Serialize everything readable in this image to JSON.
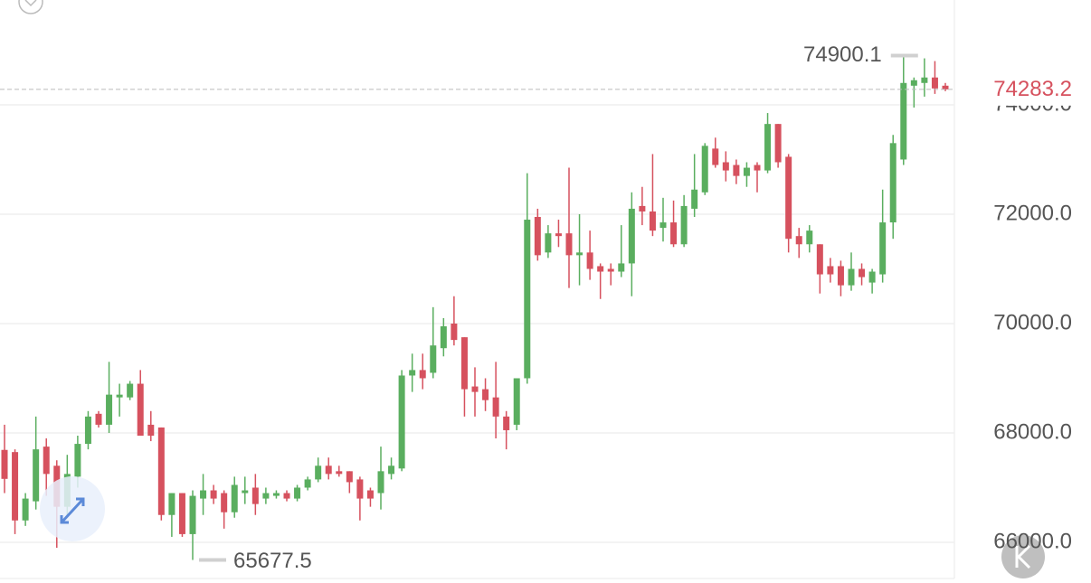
{
  "chart_data": {
    "type": "candlestick",
    "open": [
      67690,
      67650,
      66400,
      66750,
      67750,
      67400,
      66650,
      67200,
      67800,
      68350,
      68150,
      68650,
      68650,
      68900,
      68150,
      68100,
      66500,
      66900,
      66150,
      66800,
      66950,
      66900,
      66550,
      66900,
      67000,
      66800,
      66850,
      66900,
      66800,
      67000,
      67150,
      67400,
      67300,
      67300,
      67150,
      66950,
      66900,
      67250,
      67350,
      69050,
      69150,
      69100,
      69550,
      70000,
      69750,
      68850,
      68800,
      68650,
      68300,
      68150,
      69000,
      71950,
      71300,
      71650,
      71650,
      71250,
      71300,
      71050,
      71000,
      70950,
      71100,
      72150,
      72050,
      71750,
      71850,
      71450,
      72100,
      72400,
      73200,
      72950,
      72900,
      72700,
      72900,
      72800,
      73650,
      73050,
      71600,
      71450,
      71450,
      71050,
      71050,
      70700,
      71000,
      70750,
      70900,
      71850,
      73000,
      74350,
      74400,
      74500,
      74350
    ],
    "high": [
      68150,
      67700,
      66900,
      68300,
      67900,
      67500,
      67600,
      67950,
      68400,
      68400,
      69300,
      68900,
      68950,
      69150,
      68400,
      68100,
      66900,
      66900,
      66950,
      67250,
      67050,
      66950,
      67200,
      67200,
      67250,
      67000,
      66950,
      66950,
      67050,
      67200,
      67550,
      67550,
      67400,
      67300,
      67200,
      67000,
      67750,
      67550,
      69150,
      69450,
      69450,
      70300,
      70100,
      70500,
      69750,
      69200,
      69000,
      69300,
      68400,
      69000,
      72750,
      72100,
      71800,
      71900,
      72850,
      72000,
      71700,
      71100,
      71100,
      71800,
      72400,
      72500,
      73100,
      72300,
      72250,
      72350,
      73100,
      73300,
      73400,
      73150,
      73000,
      72950,
      72950,
      73850,
      73650,
      73100,
      71750,
      71800,
      71450,
      71200,
      71150,
      71300,
      71100,
      71000,
      72450,
      73450,
      74900.1,
      74500,
      74850,
      74800,
      74400
    ],
    "low": [
      66900,
      66150,
      66300,
      66600,
      66850,
      65900,
      66500,
      67000,
      67700,
      68100,
      68000,
      68300,
      68600,
      67950,
      67850,
      66400,
      66100,
      66100,
      65677.5,
      66500,
      66700,
      66250,
      66450,
      66700,
      66500,
      66700,
      66800,
      66750,
      66750,
      66950,
      67100,
      67150,
      67200,
      66900,
      66400,
      66650,
      66600,
      67150,
      67300,
      68750,
      68800,
      69000,
      69400,
      69600,
      68300,
      68300,
      68400,
      67900,
      67700,
      68050,
      68900,
      71150,
      71200,
      71400,
      70650,
      70700,
      70800,
      70450,
      70700,
      70850,
      70500,
      71800,
      71600,
      71500,
      71400,
      71400,
      71950,
      72350,
      72850,
      72600,
      72550,
      72500,
      72400,
      72750,
      72850,
      71300,
      71200,
      71300,
      70550,
      70750,
      70500,
      70600,
      70700,
      70550,
      70750,
      71550,
      72900,
      73950,
      74150,
      74200,
      74250
    ],
    "close": [
      67160,
      66400,
      66800,
      67700,
      67250,
      66650,
      67250,
      67800,
      68300,
      68150,
      68700,
      68700,
      68900,
      67950,
      67950,
      66500,
      66900,
      66150,
      66850,
      66950,
      66800,
      66550,
      67050,
      66950,
      66700,
      66900,
      66900,
      66800,
      67000,
      67150,
      67400,
      67250,
      67250,
      67100,
      66800,
      66800,
      67300,
      67400,
      69050,
      69150,
      69000,
      69600,
      69950,
      69700,
      68800,
      68750,
      68600,
      68300,
      68050,
      69000,
      71900,
      71250,
      71650,
      71600,
      71250,
      71300,
      71000,
      70950,
      70950,
      71100,
      72100,
      72050,
      71700,
      71850,
      71450,
      72150,
      72450,
      73250,
      72900,
      72800,
      72700,
      72850,
      72800,
      73650,
      72950,
      71550,
      71450,
      71700,
      70900,
      70900,
      70700,
      71000,
      70850,
      70950,
      71850,
      73300,
      74400,
      74450,
      74500,
      74300,
      74283.2
    ],
    "up_color": "#5aae5f",
    "down_color": "#d6515e",
    "ylim": [
      65256,
      75917
    ],
    "yticks": [
      {
        "value": 66000,
        "label": "66000.0"
      },
      {
        "value": 68000,
        "label": "68000.0"
      },
      {
        "value": 70000,
        "label": "70000.0"
      },
      {
        "value": 72000,
        "label": "72000.0"
      },
      {
        "value": 74000,
        "label": "74000.0"
      }
    ],
    "grid": true
  }
}
